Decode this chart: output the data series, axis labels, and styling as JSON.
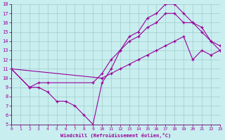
{
  "xlabel": "Windchill (Refroidissement éolien,°C)",
  "bg_color": "#c8eef0",
  "grid_color": "#a0ccc8",
  "line_color": "#990099",
  "spine_color": "#660066",
  "xlim": [
    0,
    23
  ],
  "ylim": [
    5,
    18
  ],
  "xticks": [
    0,
    1,
    2,
    3,
    4,
    5,
    6,
    7,
    8,
    9,
    10,
    11,
    12,
    13,
    14,
    15,
    16,
    17,
    18,
    19,
    20,
    21,
    22,
    23
  ],
  "yticks": [
    5,
    6,
    7,
    8,
    9,
    10,
    11,
    12,
    13,
    14,
    15,
    16,
    17,
    18
  ],
  "line1_x": [
    0,
    2,
    3,
    4,
    5,
    6,
    7,
    8,
    9,
    10,
    11,
    12,
    13,
    14,
    15,
    16,
    17,
    18,
    19,
    20,
    21,
    22,
    23
  ],
  "line1_y": [
    11,
    9,
    9,
    8.5,
    7.5,
    7.5,
    7,
    6,
    5,
    9.5,
    11,
    13,
    14.5,
    15,
    16.5,
    17,
    18,
    18,
    17,
    16,
    15,
    14,
    13
  ],
  "line2_x": [
    0,
    2,
    3,
    4,
    9,
    10,
    11,
    12,
    13,
    14,
    15,
    16,
    17,
    18,
    19,
    20,
    21,
    22,
    23
  ],
  "line2_y": [
    11,
    9,
    9.5,
    9.5,
    9.5,
    10.5,
    12,
    13,
    14,
    14.5,
    15.5,
    16,
    17,
    17,
    16,
    16,
    15.5,
    14,
    13.5
  ],
  "line3_x": [
    0,
    10,
    11,
    12,
    13,
    14,
    15,
    16,
    17,
    18,
    19,
    20,
    21,
    22,
    23
  ],
  "line3_y": [
    11,
    10,
    10.5,
    11,
    11.5,
    12,
    12.5,
    13,
    13.5,
    14,
    14.5,
    12,
    13,
    12.5,
    13
  ]
}
